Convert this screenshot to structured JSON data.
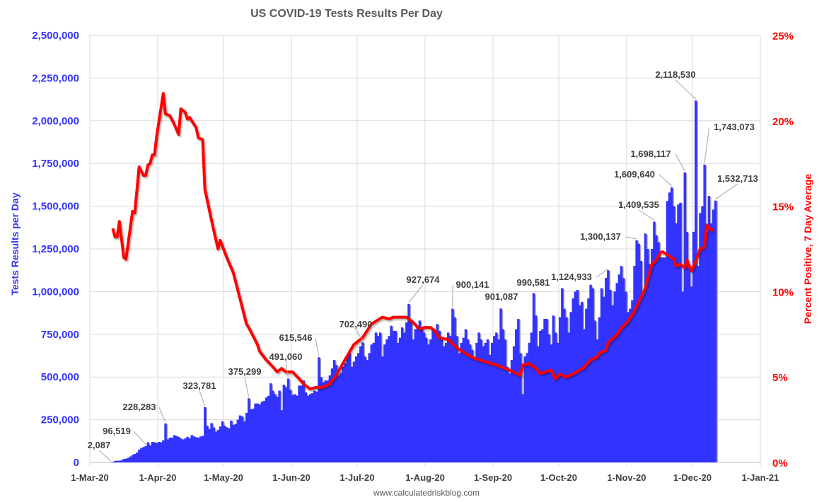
{
  "chart_data": {
    "type": "bar+line",
    "title": "US COVID-19 Tests Results Per Day",
    "ylabel_left": "Tests Results per Day",
    "ylabel_right": "Percent Positive, 7 Day Average",
    "source": "www.calculatedriskblog.com",
    "xlim": [
      "2020-03-01",
      "2021-01-01"
    ],
    "ylim_left": [
      0,
      2500000
    ],
    "ylim_right": [
      0,
      25
    ],
    "grid": true,
    "colors": {
      "bars": "#3333ff",
      "bar_shadow": "#a6a6a6",
      "line": "#ff0000",
      "grid": "#d9d9d9"
    },
    "x_tick_labels": [
      "1-Mar-20",
      "1-Apr-20",
      "1-May-20",
      "1-Jun-20",
      "1-Jul-20",
      "1-Aug-20",
      "1-Sep-20",
      "1-Oct-20",
      "1-Nov-20",
      "1-Dec-20",
      "1-Jan-21"
    ],
    "x_tick_dates": [
      "2020-03-01",
      "2020-04-01",
      "2020-05-01",
      "2020-06-01",
      "2020-07-01",
      "2020-08-01",
      "2020-09-01",
      "2020-10-01",
      "2020-11-01",
      "2020-12-01",
      "2021-01-01"
    ],
    "y_left_tick_labels": [
      "0",
      "250,000",
      "500,000",
      "750,000",
      "1,000,000",
      "1,250,000",
      "1,500,000",
      "1,750,000",
      "2,000,000",
      "2,250,000",
      "2,500,000"
    ],
    "y_right_tick_labels": [
      "0%",
      "5%",
      "10%",
      "15%",
      "20%",
      "25%"
    ],
    "bars": [
      {
        "month": "2020-03",
        "first_day": 10,
        "values": [
          2087,
          4000,
          9000,
          10000,
          10000,
          12000,
          20000,
          22000,
          27000,
          35000,
          45000,
          50000,
          58000,
          75000,
          85000,
          90000,
          96519,
          118000,
          100000,
          120000,
          118000,
          115000
        ]
      },
      {
        "month": "2020-04",
        "first_day": 1,
        "values": [
          120000,
          118000,
          130000,
          228283,
          135000,
          145000,
          145000,
          160000,
          155000,
          150000,
          140000,
          135000,
          140000,
          150000,
          142000,
          160000,
          152000,
          148000,
          145000,
          152000,
          155000,
          323781,
          215000,
          195000,
          230000,
          205000,
          180000,
          190000,
          210000,
          240000
        ]
      },
      {
        "month": "2020-05",
        "first_day": 1,
        "values": [
          215000,
          205000,
          200000,
          245000,
          220000,
          225000,
          250000,
          275000,
          270000,
          240000,
          290000,
          375299,
          310000,
          315000,
          345000,
          345000,
          340000,
          355000,
          360000,
          380000,
          390000,
          463000,
          420000,
          400000,
          385000,
          420000,
          306000,
          455000,
          440000,
          491060,
          425000
        ]
      },
      {
        "month": "2020-06",
        "first_day": 1,
        "values": [
          395000,
          400000,
          390000,
          450000,
          450000,
          480000,
          410000,
          390000,
          400000,
          405000,
          420000,
          415000,
          615546,
          500000,
          470000,
          480000,
          480000,
          510000,
          550000,
          600000,
          570000,
          510000,
          525000,
          560000,
          580000,
          630000,
          640000,
          560000,
          590000,
          620000
        ]
      },
      {
        "month": "2020-07",
        "first_day": 1,
        "values": [
          640000,
          680000,
          702490,
          620000,
          600000,
          640000,
          690000,
          700000,
          760000,
          740000,
          760000,
          620000,
          690000,
          720000,
          740000,
          800000,
          770000,
          770000,
          700000,
          730000,
          790000,
          760000,
          820000,
          927674,
          830000,
          720000,
          780000,
          800000,
          830000,
          790000,
          760000
        ]
      },
      {
        "month": "2020-08",
        "first_day": 1,
        "values": [
          730000,
          690000,
          720000,
          780000,
          770000,
          810000,
          770000,
          720000,
          680000,
          700000,
          760000,
          740000,
          900141,
          850000,
          740000,
          640000,
          700000,
          730000,
          780000,
          720000,
          690000,
          660000,
          610000,
          700000,
          760000,
          720000,
          680000,
          700000,
          720000,
          630000,
          700000
        ]
      },
      {
        "month": "2020-09",
        "first_day": 1,
        "values": [
          740000,
          760000,
          720000,
          901087,
          780000,
          720000,
          560000,
          520000,
          600000,
          680000,
          780000,
          840000,
          640000,
          400000,
          620000,
          640000,
          700000,
          760000,
          990581,
          860000,
          680000,
          770000,
          780000,
          840000,
          840000,
          750000,
          690000,
          860000,
          760000,
          700000
        ]
      },
      {
        "month": "2020-10",
        "first_day": 1,
        "values": [
          850000,
          1020000,
          900000,
          850000,
          760000,
          880000,
          960000,
          1000000,
          1010000,
          920000,
          940000,
          780000,
          900000,
          960000,
          1040000,
          1020000,
          830000,
          720000,
          850000,
          1020000,
          970000,
          1080000,
          1124933,
          1010000,
          920000,
          1000000,
          1050000,
          1100000,
          1150000,
          1080000,
          1000000
        ]
      },
      {
        "month": "2020-11",
        "first_day": 1,
        "values": [
          880000,
          900000,
          950000,
          1150000,
          1300137,
          1280000,
          1180000,
          1000000,
          1340000,
          1250000,
          1160000,
          1250000,
          1409535,
          1330000,
          1290000,
          1200000,
          1200000,
          1200000,
          1530000,
          1580000,
          1609640,
          1500000,
          1400000,
          1510000,
          1520000,
          1000000,
          1698117,
          1350000,
          1140000,
          1030000
        ]
      },
      {
        "month": "2020-12",
        "first_day": 1,
        "values": [
          1350000,
          2118530,
          1150000,
          1460000,
          1500000,
          1743073,
          1350000,
          1560000,
          1400000,
          1480000,
          1532713
        ]
      }
    ],
    "percent_positive": [
      [
        "2020-03-11",
        13.7
      ],
      [
        "2020-03-12",
        13.2
      ],
      [
        "2020-03-13",
        13.2
      ],
      [
        "2020-03-14",
        14.1
      ],
      [
        "2020-03-16",
        12.0
      ],
      [
        "2020-03-17",
        11.9
      ],
      [
        "2020-03-20",
        14.7
      ],
      [
        "2020-03-21",
        14.6
      ],
      [
        "2020-03-23",
        17.3
      ],
      [
        "2020-03-25",
        16.8
      ],
      [
        "2020-03-26",
        16.8
      ],
      [
        "2020-03-27",
        17.4
      ],
      [
        "2020-03-28",
        17.5
      ],
      [
        "2020-03-29",
        18.0
      ],
      [
        "2020-03-30",
        18.0
      ],
      [
        "2020-03-31",
        19.1
      ],
      [
        "2020-04-03",
        21.6
      ],
      [
        "2020-04-04",
        20.4
      ],
      [
        "2020-04-06",
        20.3
      ],
      [
        "2020-04-08",
        19.8
      ],
      [
        "2020-04-10",
        19.2
      ],
      [
        "2020-04-11",
        20.7
      ],
      [
        "2020-04-13",
        20.5
      ],
      [
        "2020-04-14",
        20.1
      ],
      [
        "2020-04-15",
        20.2
      ],
      [
        "2020-04-18",
        19.6
      ],
      [
        "2020-04-19",
        19.0
      ],
      [
        "2020-04-21",
        18.9
      ],
      [
        "2020-04-22",
        16.0
      ],
      [
        "2020-04-25",
        14.2
      ],
      [
        "2020-04-28",
        12.5
      ],
      [
        "2020-04-29",
        13.0
      ],
      [
        "2020-05-02",
        12.0
      ],
      [
        "2020-05-05",
        11.1
      ],
      [
        "2020-05-06",
        10.6
      ],
      [
        "2020-05-11",
        8.1
      ],
      [
        "2020-05-12",
        7.9
      ],
      [
        "2020-05-16",
        6.9
      ],
      [
        "2020-05-17",
        6.5
      ],
      [
        "2020-05-20",
        6.0
      ],
      [
        "2020-05-23",
        5.6
      ],
      [
        "2020-05-25",
        5.3
      ],
      [
        "2020-05-27",
        5.5
      ],
      [
        "2020-05-29",
        5.3
      ],
      [
        "2020-06-01",
        5.3
      ],
      [
        "2020-06-04",
        4.9
      ],
      [
        "2020-06-06",
        4.6
      ],
      [
        "2020-06-09",
        4.3
      ],
      [
        "2020-06-12",
        4.4
      ],
      [
        "2020-06-15",
        4.4
      ],
      [
        "2020-06-18",
        4.6
      ],
      [
        "2020-06-21",
        5.1
      ],
      [
        "2020-06-24",
        5.8
      ],
      [
        "2020-06-29",
        6.9
      ],
      [
        "2020-07-01",
        7.1
      ],
      [
        "2020-07-03",
        7.3
      ],
      [
        "2020-07-07",
        8.1
      ],
      [
        "2020-07-12",
        8.5
      ],
      [
        "2020-07-15",
        8.4
      ],
      [
        "2020-07-17",
        8.5
      ],
      [
        "2020-07-23",
        8.5
      ],
      [
        "2020-07-26",
        8.2
      ],
      [
        "2020-07-29",
        7.8
      ],
      [
        "2020-07-31",
        7.9
      ],
      [
        "2020-08-03",
        7.9
      ],
      [
        "2020-08-05",
        7.7
      ],
      [
        "2020-08-07",
        7.3
      ],
      [
        "2020-08-11",
        7.2
      ],
      [
        "2020-08-15",
        6.7
      ],
      [
        "2020-08-20",
        6.3
      ],
      [
        "2020-08-23",
        6.1
      ],
      [
        "2020-08-28",
        5.9
      ],
      [
        "2020-09-02",
        5.7
      ],
      [
        "2020-09-08",
        5.4
      ],
      [
        "2020-09-13",
        5.1
      ],
      [
        "2020-09-14",
        5.7
      ],
      [
        "2020-09-17",
        5.8
      ],
      [
        "2020-09-21",
        5.4
      ],
      [
        "2020-09-22",
        5.2
      ],
      [
        "2020-09-27",
        5.4
      ],
      [
        "2020-09-29",
        4.9
      ],
      [
        "2020-10-01",
        5.17
      ],
      [
        "2020-10-04",
        5.0
      ],
      [
        "2020-10-08",
        5.25
      ],
      [
        "2020-10-12",
        5.55
      ],
      [
        "2020-10-15",
        6.0
      ],
      [
        "2020-10-18",
        6.17
      ],
      [
        "2020-10-19",
        6.4
      ],
      [
        "2020-10-22",
        6.55
      ],
      [
        "2020-10-23",
        7.0
      ],
      [
        "2020-10-27",
        7.47
      ],
      [
        "2020-10-29",
        7.85
      ],
      [
        "2020-11-01",
        8.24
      ],
      [
        "2020-11-04",
        8.85
      ],
      [
        "2020-11-06",
        9.39
      ],
      [
        "2020-11-09",
        10.2
      ],
      [
        "2020-11-10",
        10.7
      ],
      [
        "2020-11-12",
        11.6
      ],
      [
        "2020-11-14",
        11.84
      ],
      [
        "2020-11-16",
        12.3
      ],
      [
        "2020-11-17",
        12.33
      ],
      [
        "2020-11-19",
        12.15
      ],
      [
        "2020-11-22",
        11.9
      ],
      [
        "2020-11-23",
        11.5
      ],
      [
        "2020-11-25",
        11.6
      ],
      [
        "2020-11-27",
        11.4
      ],
      [
        "2020-11-28",
        11.84
      ],
      [
        "2020-11-30",
        11.2
      ],
      [
        "2020-12-02",
        11.76
      ],
      [
        "2020-12-04",
        12.5
      ],
      [
        "2020-12-06",
        12.6
      ],
      [
        "2020-12-07",
        13.9
      ],
      [
        "2020-12-09",
        13.6
      ],
      [
        "2020-12-10",
        13.6
      ]
    ],
    "annotations": [
      {
        "date": "2020-03-10",
        "value": 2087,
        "text": "2,087"
      },
      {
        "date": "2020-03-26",
        "value": 96519,
        "text": "96,519"
      },
      {
        "date": "2020-04-04",
        "value": 228283,
        "text": "228,283"
      },
      {
        "date": "2020-04-22",
        "value": 323781,
        "text": "323,781"
      },
      {
        "date": "2020-05-12",
        "value": 375299,
        "text": "375,299"
      },
      {
        "date": "2020-05-30",
        "value": 491060,
        "text": "491,060"
      },
      {
        "date": "2020-06-13",
        "value": 615546,
        "text": "615,546"
      },
      {
        "date": "2020-07-03",
        "value": 702490,
        "text": "702,490"
      },
      {
        "date": "2020-07-24",
        "value": 927674,
        "text": "927,674"
      },
      {
        "date": "2020-08-13",
        "value": 900141,
        "text": "900,141"
      },
      {
        "date": "2020-09-04",
        "value": 901087,
        "text": "901,087"
      },
      {
        "date": "2020-09-19",
        "value": 990581,
        "text": "990,581"
      },
      {
        "date": "2020-10-23",
        "value": 1124933,
        "text": "1,124,933"
      },
      {
        "date": "2020-11-05",
        "value": 1300137,
        "text": "1,300,137"
      },
      {
        "date": "2020-11-13",
        "value": 1409535,
        "text": "1,409,535"
      },
      {
        "date": "2020-11-21",
        "value": 1609640,
        "text": "1,609,640"
      },
      {
        "date": "2020-11-27",
        "value": 1698117,
        "text": "1,698,117"
      },
      {
        "date": "2020-12-02",
        "value": 2118530,
        "text": "2,118,530"
      },
      {
        "date": "2020-12-06",
        "value": 1743073,
        "text": "1,743,073"
      },
      {
        "date": "2020-12-11",
        "value": 1532713,
        "text": "1,532,713"
      }
    ]
  }
}
